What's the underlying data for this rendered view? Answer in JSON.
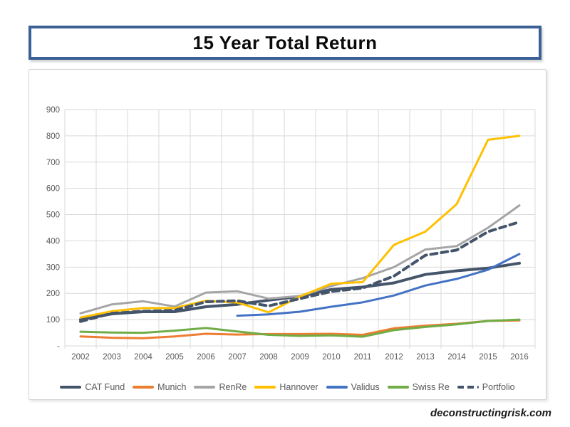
{
  "title": {
    "text": "15 Year Total Return"
  },
  "footer": {
    "text": "deconstructingrisk.com"
  },
  "chart_data": {
    "type": "line",
    "title": "15 Year Total Return",
    "x": [
      "2002",
      "2003",
      "2004",
      "2005",
      "2006",
      "2007",
      "2008",
      "2009",
      "2010",
      "2011",
      "2012",
      "2013",
      "2014",
      "2015",
      "2016"
    ],
    "ylim": [
      0,
      900
    ],
    "grid": true,
    "legend_position": "bottom",
    "yticks": [
      {
        "value": 900,
        "label": "900"
      },
      {
        "value": 800,
        "label": "800"
      },
      {
        "value": 700,
        "label": "700"
      },
      {
        "value": 600,
        "label": "600"
      },
      {
        "value": 500,
        "label": "500"
      },
      {
        "value": 400,
        "label": "400"
      },
      {
        "value": 300,
        "label": "300"
      },
      {
        "value": 200,
        "label": "200"
      },
      {
        "value": 100,
        "label": "100"
      },
      {
        "value": 0,
        "label": "-"
      }
    ],
    "series": [
      {
        "name": "CAT Fund",
        "color": "#44546A",
        "width": 4,
        "dash": null,
        "values": [
          100,
          122,
          130,
          130,
          149,
          158,
          174,
          188,
          215,
          224,
          240,
          272,
          286,
          296,
          315
        ]
      },
      {
        "name": "Munich",
        "color": "#ED7D31",
        "width": 3,
        "dash": null,
        "values": [
          36,
          31,
          29,
          36,
          46,
          43,
          45,
          45,
          46,
          42,
          67,
          77,
          84,
          95,
          97
        ]
      },
      {
        "name": "RenRe",
        "color": "#A5A5A5",
        "width": 3,
        "dash": null,
        "values": [
          124,
          158,
          170,
          150,
          203,
          208,
          180,
          190,
          228,
          258,
          300,
          367,
          380,
          450,
          535
        ]
      },
      {
        "name": "Hannover",
        "color": "#FFC000",
        "width": 3,
        "dash": null,
        "values": [
          108,
          132,
          144,
          144,
          172,
          165,
          128,
          188,
          237,
          243,
          385,
          435,
          540,
          785,
          800
        ]
      },
      {
        "name": "Validus",
        "color": "#4472C4",
        "width": 3,
        "dash": null,
        "values": [
          null,
          null,
          null,
          null,
          null,
          115,
          120,
          130,
          149,
          166,
          192,
          230,
          255,
          290,
          350
        ]
      },
      {
        "name": "Swiss Re",
        "color": "#70AD47",
        "width": 3,
        "dash": null,
        "values": [
          54,
          51,
          50,
          58,
          68,
          55,
          42,
          38,
          40,
          35,
          60,
          72,
          82,
          95,
          100
        ]
      },
      {
        "name": "Portfolio",
        "color": "#44546A",
        "width": 4,
        "dash": "9 6",
        "values": [
          93,
          124,
          132,
          135,
          168,
          172,
          152,
          180,
          207,
          220,
          266,
          345,
          365,
          435,
          472
        ]
      }
    ],
    "colors": {
      "gridline": "#D9D9D9",
      "axis_text": "#595959",
      "title_border": "#3a6096"
    }
  }
}
